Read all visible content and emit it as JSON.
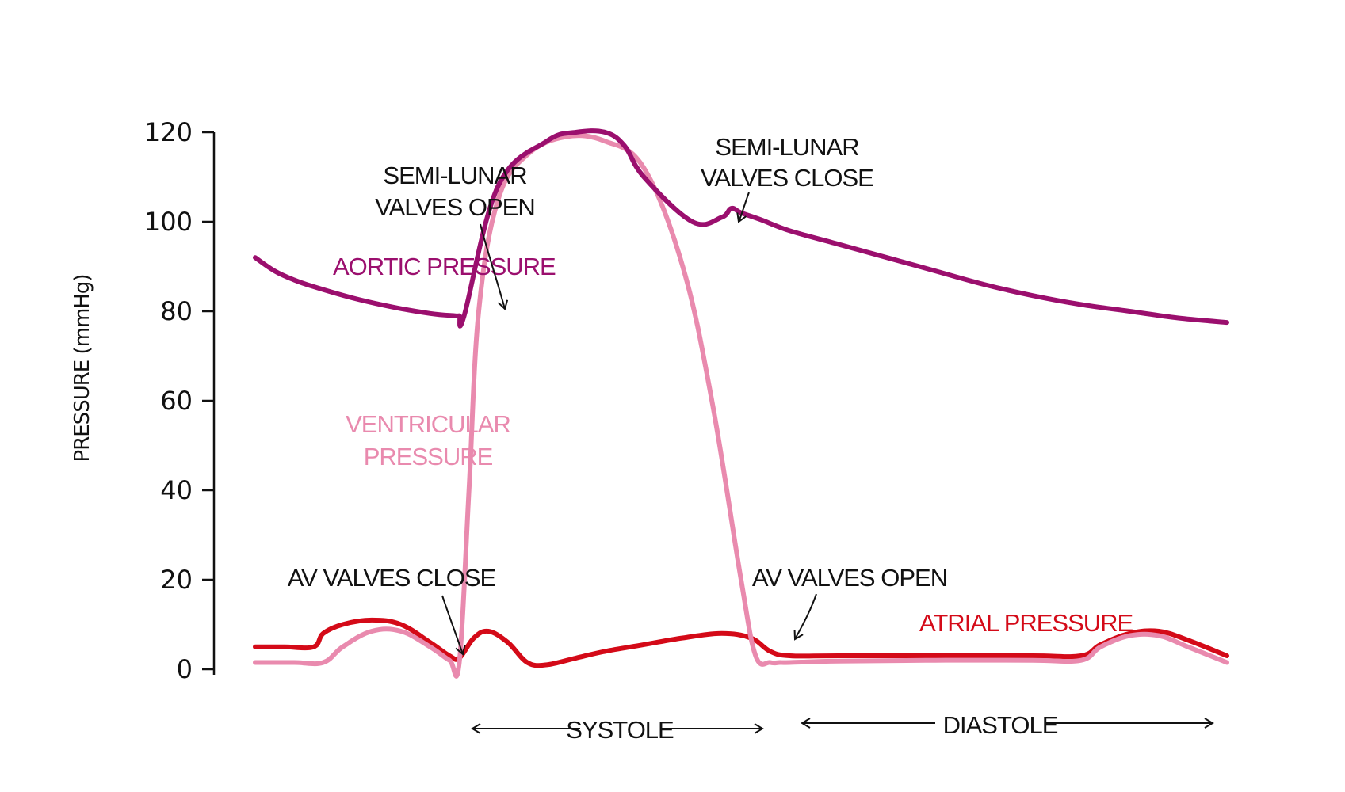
{
  "chart_data": {
    "type": "line",
    "title": "",
    "ylabel": "PRESSURE (mmHg)",
    "xlabel": "",
    "ylim": [
      0,
      120
    ],
    "yticks": [
      "0",
      "20",
      "40",
      "60",
      "80",
      "100",
      "120"
    ],
    "grid": false,
    "colors": {
      "aortic": "#9b0f6e",
      "ventricular": "#e98aae",
      "atrial": "#d40a18",
      "ink": "#111111"
    },
    "series": [
      {
        "name": "AORTIC PRESSURE",
        "x": [
          0,
          2,
          4,
          6,
          10,
          14,
          18,
          20.5,
          21,
          21.5,
          25,
          30,
          33,
          36,
          38,
          40,
          45,
          48,
          49,
          50,
          52,
          55,
          60,
          65,
          70,
          75,
          80,
          85,
          90,
          95,
          100
        ],
        "y": [
          92,
          89,
          87,
          85.5,
          83,
          81,
          79.5,
          79,
          79,
          79,
          108,
          118,
          120,
          120,
          117,
          110,
          100,
          101,
          103,
          102,
          100.5,
          98,
          95,
          92,
          89,
          86,
          83.5,
          81.5,
          80,
          78.5,
          77.5
        ]
      },
      {
        "name": "VENTRICULAR PRESSURE",
        "x": [
          0,
          4,
          7,
          9,
          12,
          15,
          18,
          20,
          21,
          22,
          23,
          25,
          28,
          32,
          36,
          40,
          44,
          47,
          50,
          51.5,
          53,
          54,
          55,
          60,
          70,
          80,
          85,
          87,
          90,
          93,
          96,
          100
        ],
        "y": [
          1.5,
          1.5,
          1.5,
          5,
          8.5,
          8.5,
          5,
          2,
          1.5,
          40,
          80,
          105,
          115,
          119,
          118,
          112,
          90,
          60,
          20,
          3,
          1.5,
          1.5,
          1.5,
          1.8,
          2,
          2,
          2,
          5,
          7.5,
          7.5,
          5,
          1.5
        ]
      },
      {
        "name": "ATRIAL PRESSURE",
        "x": [
          0,
          3,
          6,
          7,
          9,
          12,
          15,
          18,
          20,
          21,
          22.5,
          24,
          26,
          28,
          30,
          33,
          36,
          40,
          44,
          48,
          51,
          53,
          55,
          60,
          70,
          80,
          85,
          87,
          90,
          93,
          96,
          100
        ],
        "y": [
          5,
          5,
          5,
          8,
          10,
          11,
          10,
          6,
          3,
          2.5,
          7,
          8.5,
          6,
          1.5,
          1,
          2.5,
          4,
          5.5,
          7,
          8,
          7,
          4,
          3,
          3,
          3,
          3,
          3,
          5.5,
          8,
          8.5,
          6.5,
          3
        ]
      }
    ],
    "annotations": {
      "aortic_label": "AORTIC PRESSURE",
      "ventricular_label_line1": "VENTRICULAR",
      "ventricular_label_line2": "PRESSURE",
      "atrial_label": "ATRIAL PRESSURE",
      "slv_open_line1": "SEMI-LUNAR",
      "slv_open_line2": "VALVES OPEN",
      "slv_close_line1": "SEMI-LUNAR",
      "slv_close_line2": "VALVES CLOSE",
      "av_close": "AV VALVES  CLOSE",
      "av_open": "AV VALVES OPEN",
      "systole": "SYSTOLE",
      "diastole": "DIASTOLE"
    }
  }
}
